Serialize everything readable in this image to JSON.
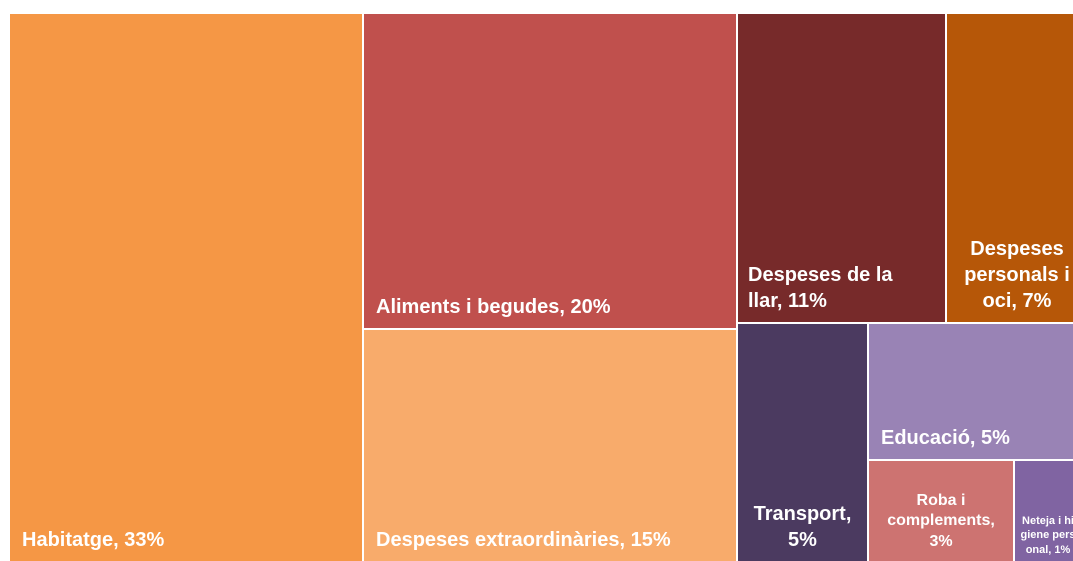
{
  "chart_data": {
    "type": "treemap",
    "values": [
      33,
      20,
      15,
      11,
      7,
      5,
      5,
      3,
      1
    ],
    "value_labels": [
      "Habitatge, 33%",
      "Aliments i begudes, 20%",
      "Despeses extraordinàries, 15%",
      "Despeses de la llar, 11%",
      "Despeses personals i oci, 7%",
      "Transport, 5%",
      "Educació, 5%",
      "Roba i complements, 3%",
      "Neteja i higiene personal, 1%"
    ],
    "colors": [
      "#f59745",
      "#c0504d",
      "#f8ab6b",
      "#772a2a",
      "#b65708",
      "#4b3a60",
      "#9983b5",
      "#cd7371",
      "#8064a2"
    ]
  }
}
